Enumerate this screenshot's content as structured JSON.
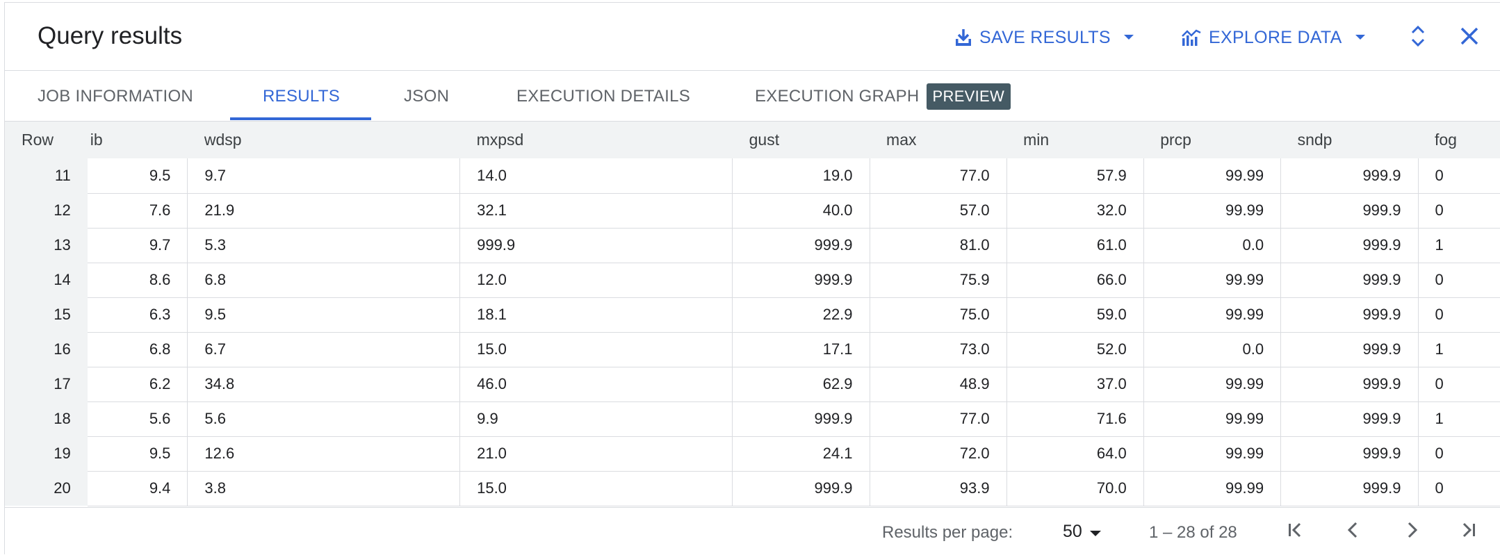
{
  "header": {
    "title": "Query results",
    "save_results": "SAVE RESULTS",
    "explore_data": "EXPLORE DATA"
  },
  "tabs": [
    {
      "label": "JOB INFORMATION",
      "active": false
    },
    {
      "label": "RESULTS",
      "active": true
    },
    {
      "label": "JSON",
      "active": false
    },
    {
      "label": "EXECUTION DETAILS",
      "active": false
    },
    {
      "label": "EXECUTION GRAPH",
      "active": false,
      "badge": "PREVIEW"
    }
  ],
  "table": {
    "columns": [
      "Row",
      "ib",
      "wdsp",
      "mxpsd",
      "gust",
      "max",
      "min",
      "prcp",
      "sndp",
      "fog"
    ],
    "rows": [
      [
        "11",
        "9.5",
        "9.7",
        "14.0",
        "19.0",
        "77.0",
        "57.9",
        "99.99",
        "999.9",
        "0"
      ],
      [
        "12",
        "7.6",
        "21.9",
        "32.1",
        "40.0",
        "57.0",
        "32.0",
        "99.99",
        "999.9",
        "0"
      ],
      [
        "13",
        "9.7",
        "5.3",
        "999.9",
        "999.9",
        "81.0",
        "61.0",
        "0.0",
        "999.9",
        "1"
      ],
      [
        "14",
        "8.6",
        "6.8",
        "12.0",
        "999.9",
        "75.9",
        "66.0",
        "99.99",
        "999.9",
        "0"
      ],
      [
        "15",
        "6.3",
        "9.5",
        "18.1",
        "22.9",
        "75.0",
        "59.0",
        "99.99",
        "999.9",
        "0"
      ],
      [
        "16",
        "6.8",
        "6.7",
        "15.0",
        "17.1",
        "73.0",
        "52.0",
        "0.0",
        "999.9",
        "1"
      ],
      [
        "17",
        "6.2",
        "34.8",
        "46.0",
        "62.9",
        "48.9",
        "37.0",
        "99.99",
        "999.9",
        "0"
      ],
      [
        "18",
        "5.6",
        "5.6",
        "9.9",
        "999.9",
        "77.0",
        "71.6",
        "99.99",
        "999.9",
        "1"
      ],
      [
        "19",
        "9.5",
        "12.6",
        "21.0",
        "24.1",
        "72.0",
        "64.0",
        "99.99",
        "999.9",
        "0"
      ],
      [
        "20",
        "9.4",
        "3.8",
        "15.0",
        "999.9",
        "93.9",
        "70.0",
        "99.99",
        "999.9",
        "0"
      ]
    ]
  },
  "footer": {
    "results_per_page_label": "Results per page:",
    "results_per_page_value": "50",
    "range": "1 – 28 of 28"
  },
  "colors": {
    "accent": "#3367d6",
    "header_bg": "#f1f3f4",
    "badge_bg": "#455a64",
    "border": "#dadce0"
  }
}
